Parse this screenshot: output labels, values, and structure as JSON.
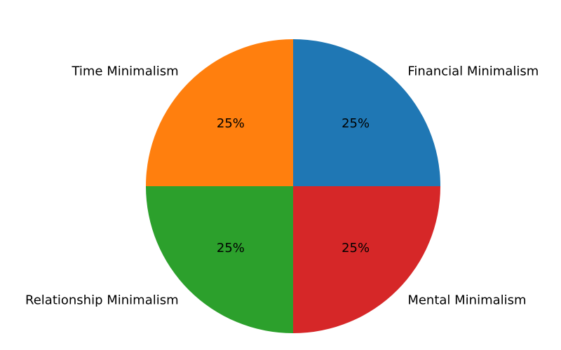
{
  "chart_data": {
    "type": "pie",
    "categories": [
      "Financial Minimalism",
      "Time Minimalism",
      "Relationship Minimalism",
      "Mental Minimalism"
    ],
    "values": [
      25,
      25,
      25,
      25
    ],
    "value_labels": [
      "25%",
      "25%",
      "25%",
      "25%"
    ],
    "colors": [
      "#1f77b4",
      "#ff7f0e",
      "#2ca02c",
      "#d62728"
    ]
  }
}
